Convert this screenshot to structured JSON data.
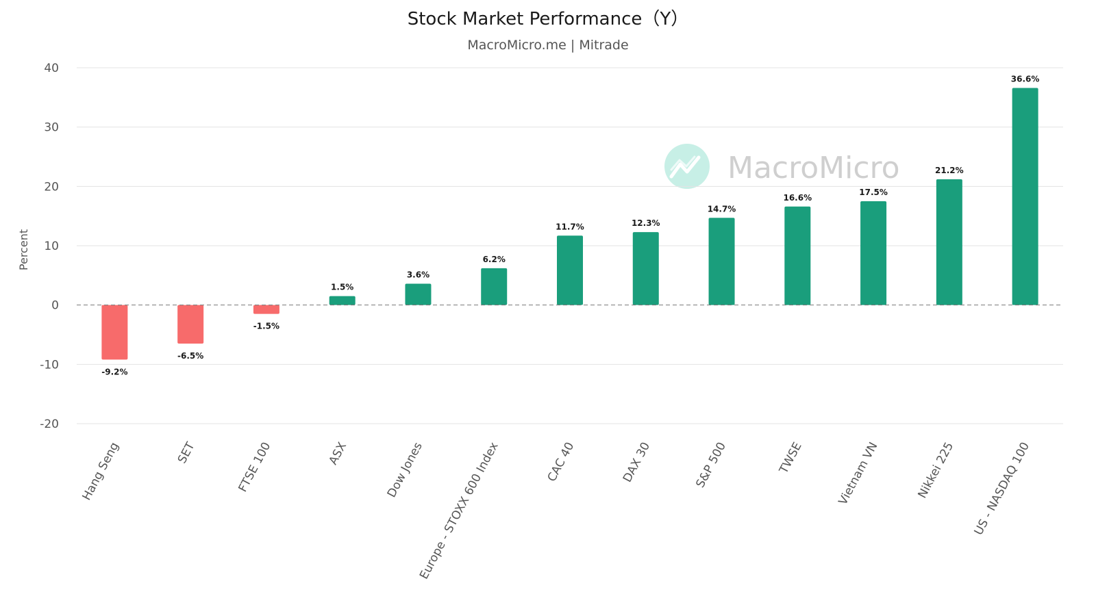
{
  "watermark": {
    "text": "MacroMicro",
    "icon": "chart-line-icon",
    "circle_color": "#c7efe6",
    "icon_color": "#ffffff"
  },
  "colors": {
    "positive": "#1a9e7c",
    "negative": "#f76b6b",
    "grid": "#e3e3e3",
    "zero_line": "#777777"
  },
  "chart_data": {
    "type": "bar",
    "title": "Stock Market Performance（Y）",
    "subtitle": "MacroMicro.me | Mitrade",
    "ylabel": "Percent",
    "xlabel": "",
    "ylim": [
      -20,
      40
    ],
    "yticks": [
      -20,
      -10,
      0,
      10,
      20,
      30,
      40
    ],
    "grid": true,
    "categories": [
      "Hang Seng",
      "SET",
      "FTSE 100",
      "ASX",
      "Dow Jones",
      "Europe - STOXX 600 Index",
      "CAC 40",
      "DAX 30",
      "S&P 500",
      "TWSE",
      "Vietnam VN",
      "Nikkei 225",
      "US - NASDAQ 100"
    ],
    "values": [
      -9.2,
      -6.5,
      -1.5,
      1.5,
      3.6,
      6.2,
      11.7,
      12.3,
      14.7,
      16.6,
      17.5,
      21.2,
      36.6
    ],
    "data_labels": [
      "-9.2%",
      "-6.5%",
      "-1.5%",
      "1.5%",
      "3.6%",
      "6.2%",
      "11.7%",
      "12.3%",
      "14.7%",
      "16.6%",
      "17.5%",
      "21.2%",
      "36.6%"
    ]
  }
}
